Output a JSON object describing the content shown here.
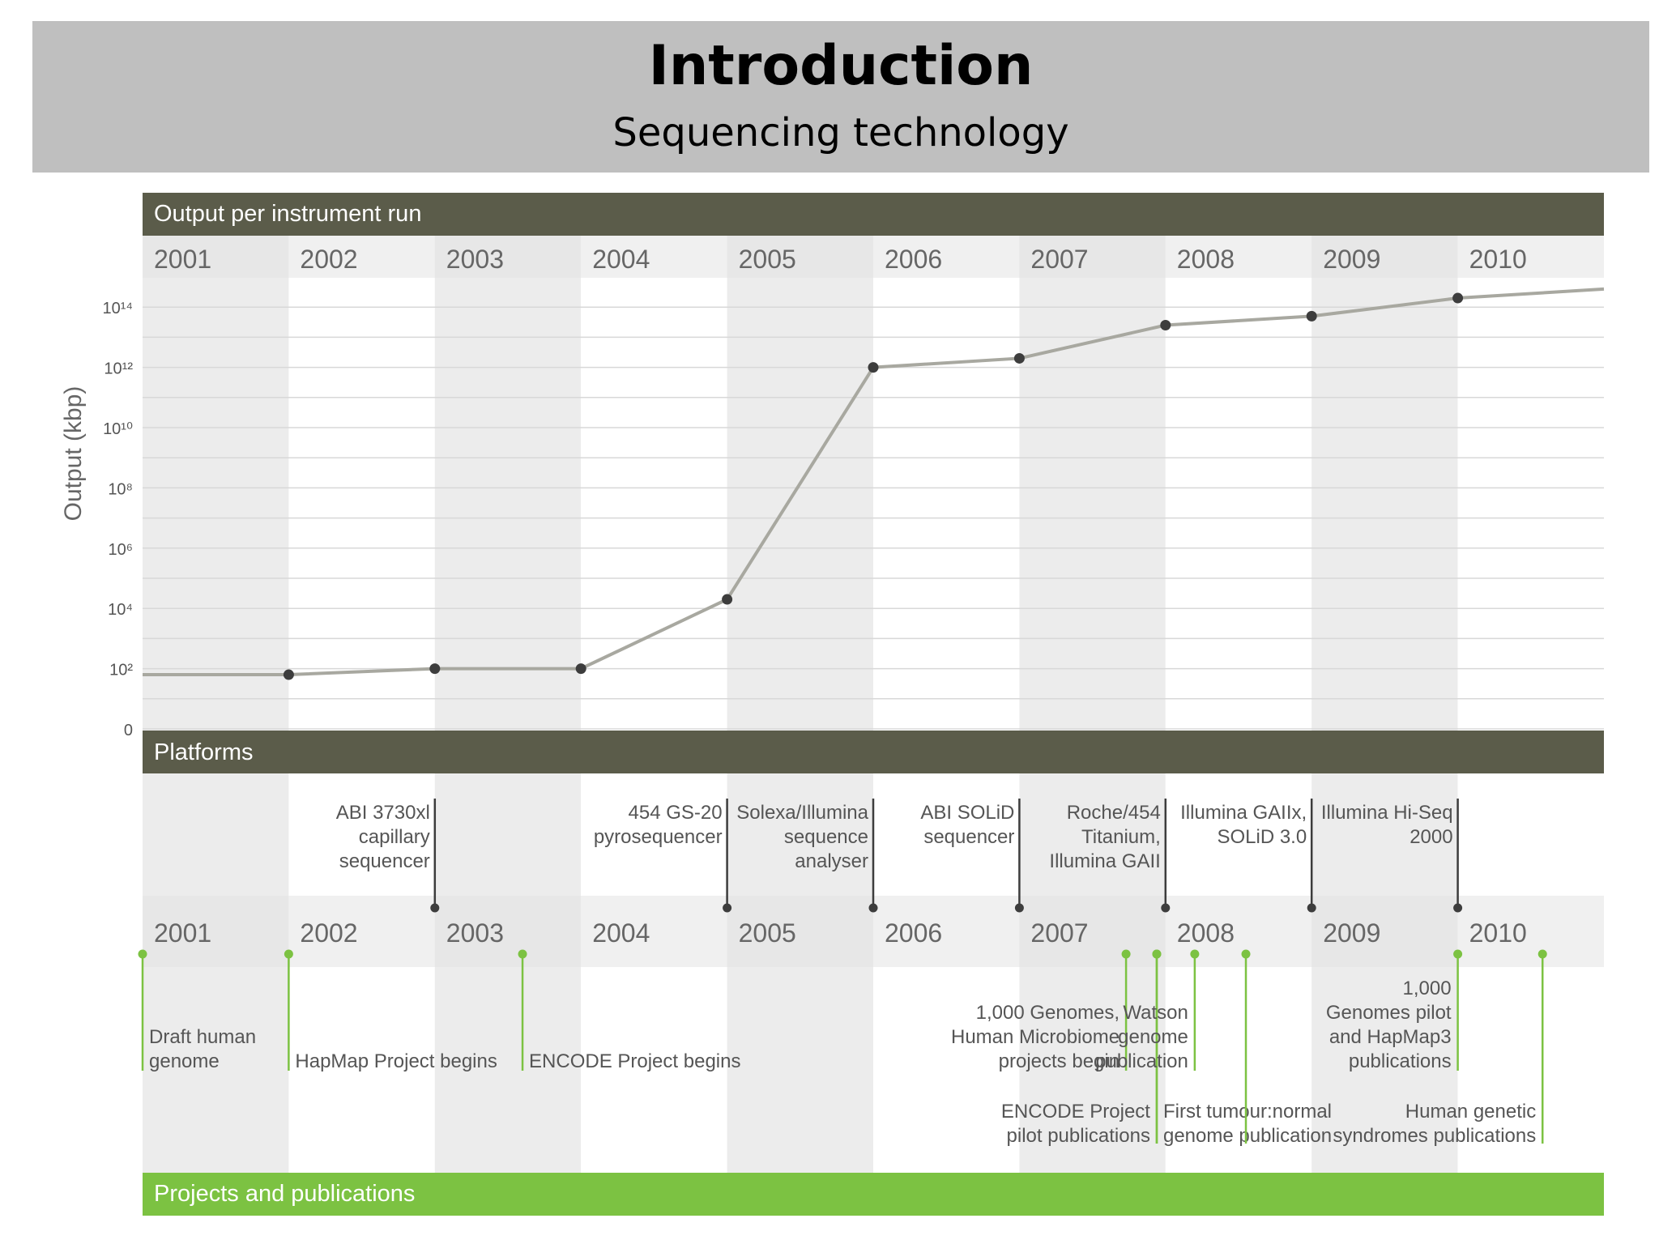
{
  "slide": {
    "title": "Introduction",
    "subtitle": "Sequencing technology"
  },
  "sections": {
    "output_header": "Output per instrument run",
    "platforms_header": "Platforms",
    "projects_header": "Projects and publications"
  },
  "colors": {
    "header_dark": "#5b5c4a",
    "projects_green": "#7cc242",
    "line": "#a8a8a0",
    "point": "#3d3d3d",
    "platform_tick": "#3d3d3d",
    "project_tick": "#7cc242",
    "band_gray": "#ececec",
    "band_white": "#ffffff"
  },
  "chart_data": {
    "type": "line",
    "title": "",
    "xlabel": "",
    "ylabel": "Output (kbp)",
    "years": [
      "2001",
      "2002",
      "2003",
      "2004",
      "2005",
      "2006",
      "2007",
      "2008",
      "2009",
      "2010"
    ],
    "yscale": "log",
    "y_ticks": [
      {
        "value": 0,
        "label": "0"
      },
      {
        "value": 2,
        "label": "10²"
      },
      {
        "value": 4,
        "label": "10⁴"
      },
      {
        "value": 6,
        "label": "10⁶"
      },
      {
        "value": 8,
        "label": "10⁸"
      },
      {
        "value": 10,
        "label": "10¹⁰"
      },
      {
        "value": 12,
        "label": "10¹²"
      },
      {
        "value": 14,
        "label": "10¹⁴"
      }
    ],
    "ylim_log10": [
      0,
      14.3
    ],
    "xlim": [
      2001,
      2011
    ],
    "grid": true,
    "series": [
      {
        "name": "",
        "x": [
          2001,
          2002,
          2003,
          2004,
          2005,
          2006,
          2007,
          2008,
          2009,
          2010,
          2011
        ],
        "log10_y": [
          1.8,
          1.8,
          2.0,
          2.0,
          4.3,
          12.0,
          12.3,
          13.4,
          13.7,
          14.3,
          14.6
        ],
        "markers": [
          false,
          true,
          true,
          true,
          true,
          true,
          true,
          true,
          true,
          true,
          false
        ]
      }
    ]
  },
  "platforms": [
    {
      "x": 2003,
      "lines": [
        "ABI 3730xl",
        "capillary",
        "sequencer"
      ]
    },
    {
      "x": 2005,
      "lines": [
        "454 GS-20",
        "pyrosequencer"
      ]
    },
    {
      "x": 2006,
      "lines": [
        "Solexa/Illumina",
        "sequence",
        "analyser"
      ]
    },
    {
      "x": 2007,
      "lines": [
        "ABI SOLiD",
        "sequencer"
      ]
    },
    {
      "x": 2008,
      "lines": [
        "Roche/454",
        "Titanium,",
        "Illumina GAII"
      ]
    },
    {
      "x": 2009,
      "lines": [
        "Illumina GAIIx,",
        "SOLiD 3.0"
      ]
    },
    {
      "x": 2010,
      "lines": [
        "Illumina Hi-Seq",
        "2000"
      ]
    }
  ],
  "projects": [
    {
      "x": 2001,
      "lines": [
        "Draft human",
        "genome"
      ],
      "side": "right",
      "level": "upper"
    },
    {
      "x": 2002,
      "lines": [
        "HapMap Project begins"
      ],
      "side": "right",
      "level": "upper"
    },
    {
      "x": 2003.6,
      "lines": [
        "ENCODE Project begins"
      ],
      "side": "right",
      "level": "upper"
    },
    {
      "x": 2007.73,
      "lines": [
        "1,000 Genomes,",
        "Human Microbiome",
        "projects begin"
      ],
      "side": "left",
      "level": "upper"
    },
    {
      "x": 2007.94,
      "lines": [
        "ENCODE Project",
        "pilot publications"
      ],
      "side": "left",
      "level": "lower"
    },
    {
      "x": 2007.94,
      "lines": [
        "First tumour:normal",
        "genome publication"
      ],
      "side": "right",
      "level": "lower"
    },
    {
      "x": 2008.2,
      "lines": [
        "Watson",
        "genome",
        "publication"
      ],
      "side": "left",
      "level": "upper"
    },
    {
      "x": 2008.55,
      "lines": [],
      "side": "left",
      "level": "lower"
    },
    {
      "x": 2010,
      "lines": [
        "1,000",
        "Genomes pilot",
        "and HapMap3",
        "publications"
      ],
      "side": "left",
      "level": "upper"
    },
    {
      "x": 2010.58,
      "lines": [
        "Human genetic",
        "syndromes publications"
      ],
      "side": "left",
      "level": "lower"
    }
  ]
}
